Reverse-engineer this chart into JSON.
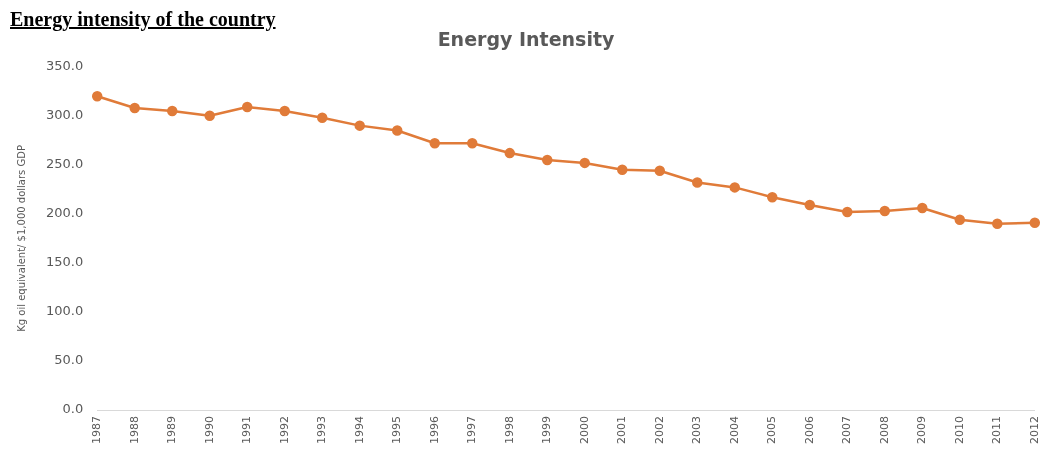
{
  "chart_data": {
    "type": "line",
    "title": "Energy Intensity",
    "ylabel": "Kg oil equivalent/ $1,000 dollars GDP",
    "annotations": [
      "Energy intensity of the country"
    ],
    "categories": [
      "1987",
      "1988",
      "1989",
      "1990",
      "1991",
      "1992",
      "1993",
      "1994",
      "1995",
      "1996",
      "1997",
      "1998",
      "1999",
      "2000",
      "2001",
      "2002",
      "2003",
      "2004",
      "2005",
      "2006",
      "2007",
      "2008",
      "2009",
      "2010",
      "2011",
      "2012"
    ],
    "series": [
      {
        "color": "#e07b39",
        "values": [
          320,
          308,
          305,
          300,
          309,
          305,
          298,
          290,
          285,
          272,
          272,
          262,
          255,
          252,
          245,
          244,
          232,
          227,
          217,
          209,
          202,
          203,
          206,
          194,
          190,
          191
        ]
      }
    ],
    "ylim": [
      0,
      350
    ],
    "yticks": [
      {
        "value": 0,
        "label": "0.0"
      },
      {
        "value": 50,
        "label": "50.0"
      },
      {
        "value": 100,
        "label": "100.0"
      },
      {
        "value": 150,
        "label": "150.0"
      },
      {
        "value": 200,
        "label": "200.0"
      },
      {
        "value": 250,
        "label": "250.0"
      },
      {
        "value": 300,
        "label": "300.0"
      },
      {
        "value": 350,
        "label": "350.0"
      }
    ],
    "grid": false,
    "legend": false,
    "marker": "circle",
    "line_style": "solid"
  }
}
